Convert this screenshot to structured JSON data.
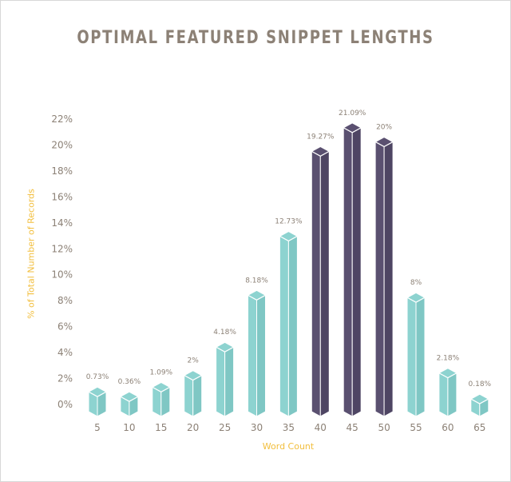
{
  "chart_data": {
    "type": "bar",
    "title": "OPTIMAL FEATURED SNIPPET LENGTHS",
    "xlabel": "Word Count",
    "ylabel": "% of Total Number of Records",
    "categories": [
      "5",
      "10",
      "15",
      "20",
      "25",
      "30",
      "35",
      "40",
      "45",
      "50",
      "55",
      "60",
      "65"
    ],
    "values": [
      0.73,
      0.36,
      1.09,
      2,
      4.18,
      8.18,
      12.73,
      19.27,
      21.09,
      20,
      8,
      2.18,
      0.18
    ],
    "data_labels": [
      "0.73%",
      "0.36%",
      "1.09%",
      "2%",
      "4.18%",
      "8.18%",
      "12.73%",
      "19.27%",
      "21.09%",
      "20%",
      "8%",
      "2.18%",
      "0.18%"
    ],
    "highlighted": [
      false,
      false,
      false,
      false,
      false,
      false,
      false,
      true,
      true,
      true,
      false,
      false,
      false
    ],
    "y_ticks": [
      "0%",
      "2%",
      "4%",
      "6%",
      "8%",
      "10%",
      "12%",
      "14%",
      "16%",
      "18%",
      "20%",
      "22%"
    ],
    "ylim": [
      0,
      22
    ],
    "grid": false,
    "colors": {
      "normal": "#8dd3d0",
      "normal_side": "#7fc7c4",
      "highlight": "#5a5070",
      "highlight_side": "#4e4563",
      "text": "#8c8176",
      "axis_label": "#f2be3c"
    }
  }
}
